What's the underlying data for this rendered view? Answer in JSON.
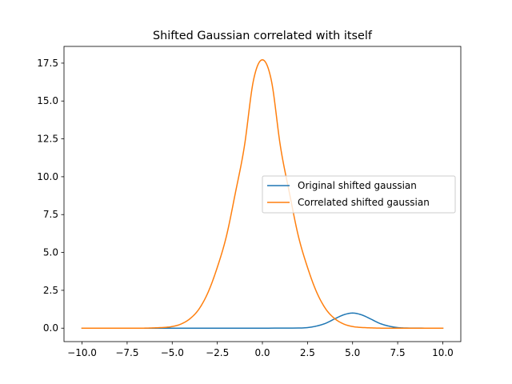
{
  "chart_data": {
    "type": "line",
    "title": "Shifted Gaussian correlated with itself",
    "xlabel": "",
    "ylabel": "",
    "xlim": [
      -11.0,
      11.0
    ],
    "ylim": [
      -0.886,
      18.605
    ],
    "xticks": [
      -10.0,
      -7.5,
      -5.0,
      -2.5,
      0.0,
      2.5,
      5.0,
      7.5,
      10.0
    ],
    "xtick_labels": [
      "−10.0",
      "−7.5",
      "−5.0",
      "−2.5",
      "0.0",
      "2.5",
      "5.0",
      "7.5",
      "10.0"
    ],
    "yticks": [
      0.0,
      2.5,
      5.0,
      7.5,
      10.0,
      12.5,
      15.0,
      17.5
    ],
    "ytick_labels": [
      "0.0",
      "2.5",
      "5.0",
      "7.5",
      "10.0",
      "12.5",
      "15.0",
      "17.5"
    ],
    "grid": false,
    "legend_position": "center-right",
    "series": [
      {
        "name": "Original shifted gaussian",
        "color": "#1f77b4",
        "x": [
          -10,
          -2,
          2,
          2.5,
          3,
          3.5,
          4,
          4.5,
          5,
          5.5,
          6,
          6.5,
          7,
          7.5,
          8,
          10
        ],
        "y": [
          0,
          0.0,
          0.01,
          0.04,
          0.14,
          0.32,
          0.61,
          0.88,
          1.0,
          0.88,
          0.61,
          0.32,
          0.14,
          0.04,
          0.01,
          0
        ]
      },
      {
        "name": "Correlated shifted gaussian",
        "color": "#ff7f0e",
        "x": [
          -10,
          -7,
          -6,
          -5,
          -4.5,
          -4,
          -3.5,
          -3,
          -2.5,
          -2,
          -1.5,
          -1,
          -0.5,
          0,
          0.5,
          1,
          1.5,
          2,
          2.5,
          3,
          3.5,
          4,
          4.5,
          5,
          6,
          7,
          10
        ],
        "y": [
          0,
          0.0,
          0.02,
          0.11,
          0.28,
          0.64,
          1.29,
          2.4,
          4.02,
          6.05,
          8.92,
          12.0,
          16.34,
          17.72,
          16.34,
          12.0,
          8.92,
          6.05,
          4.02,
          2.4,
          1.29,
          0.64,
          0.28,
          0.11,
          0.02,
          0.0,
          0
        ]
      }
    ]
  }
}
